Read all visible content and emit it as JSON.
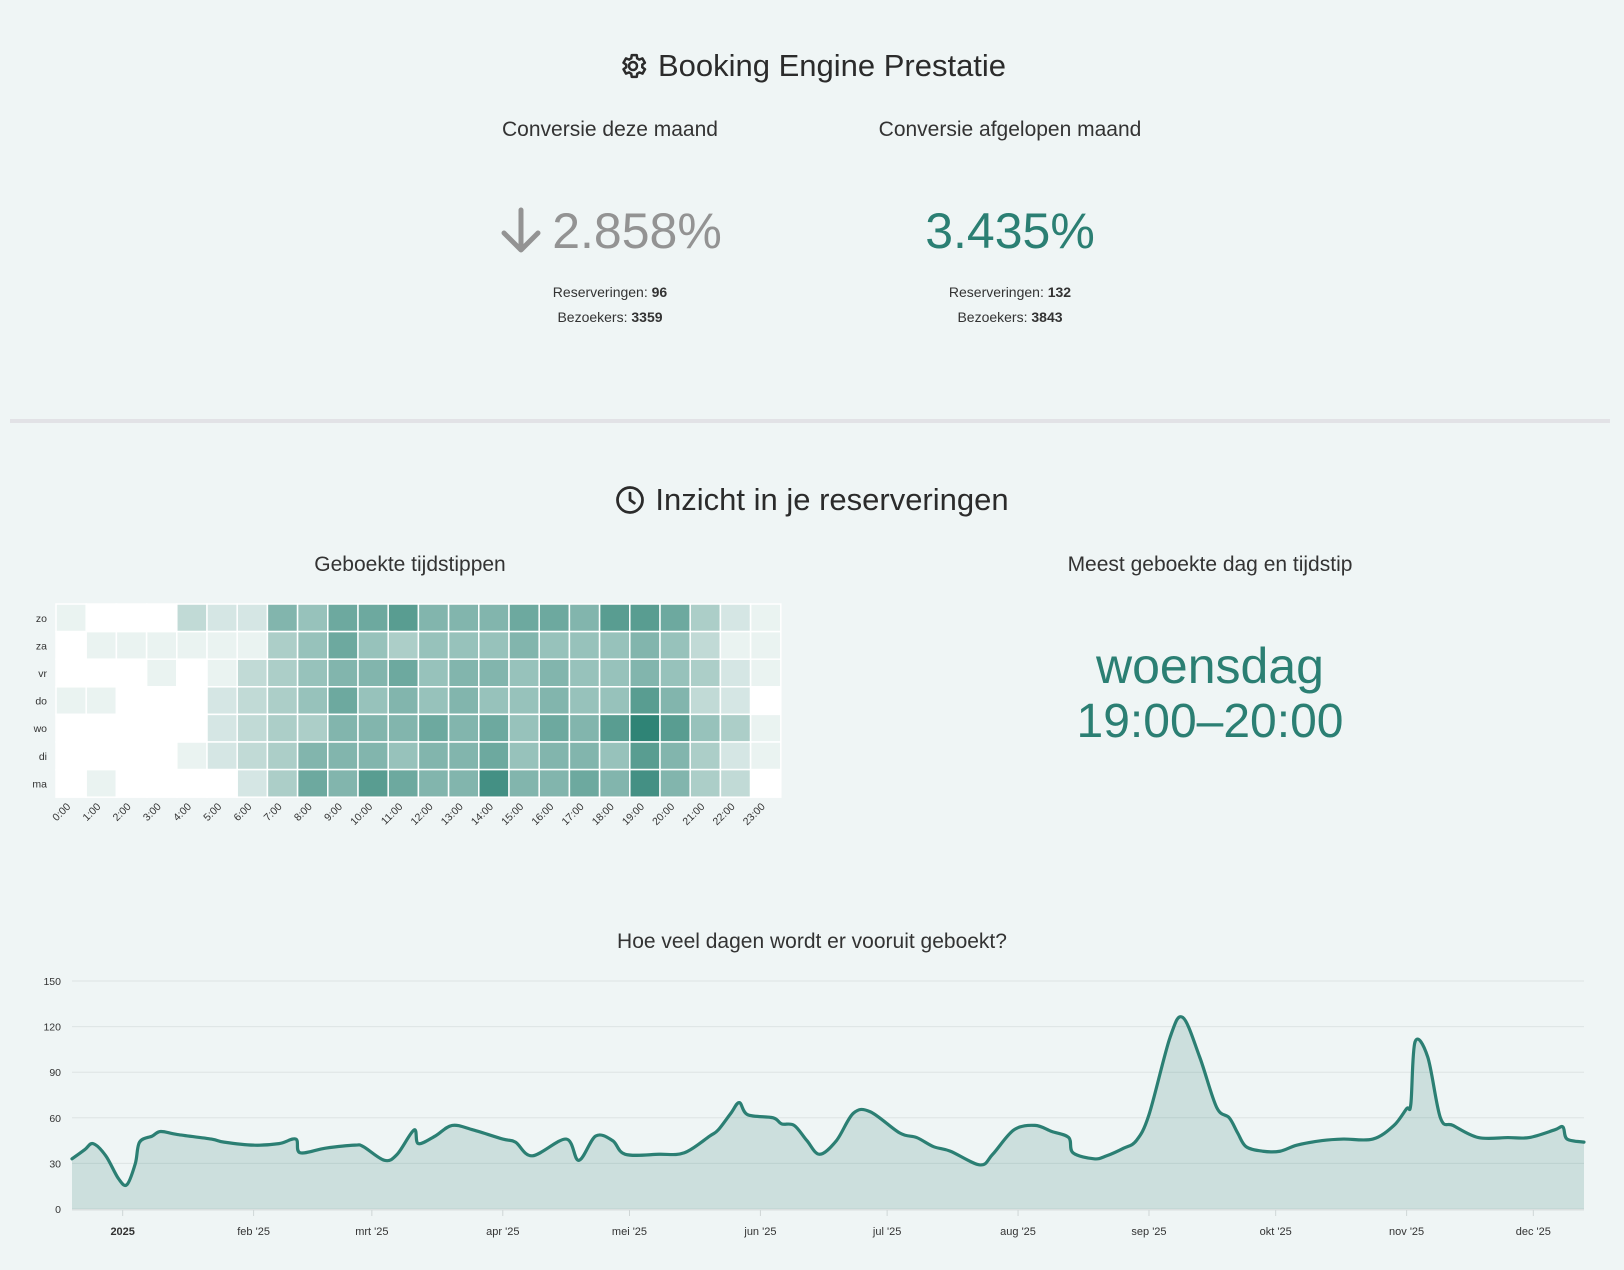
{
  "performance": {
    "title": "Booking Engine Prestatie",
    "current": {
      "label": "Conversie deze maand",
      "rate": "2.858%",
      "reservations_label": "Reserveringen:",
      "reservations": "96",
      "visitors_label": "Bezoekers:",
      "visitors": "3359"
    },
    "previous": {
      "label": "Conversie afgelopen maand",
      "rate": "3.435%",
      "reservations_label": "Reserveringen:",
      "reservations": "132",
      "visitors_label": "Bezoekers:",
      "visitors": "3843"
    }
  },
  "insights": {
    "title": "Inzicht in je reserveringen",
    "most_booked": {
      "label": "Meest geboekte dag en tijdstip",
      "day": "woensdag",
      "time": "19:00–20:00"
    }
  },
  "colors": {
    "accent": "#2b7f73",
    "muted": "#939393",
    "background": "#eff5f5"
  },
  "chart_data": [
    {
      "type": "heatmap",
      "title": "Geboekte tijdstippen",
      "rows": [
        "zo",
        "za",
        "vr",
        "do",
        "wo",
        "di",
        "ma"
      ],
      "columns": [
        "0:00",
        "1:00",
        "2:00",
        "3:00",
        "4:00",
        "5:00",
        "6:00",
        "7:00",
        "8:00",
        "9:00",
        "10:00",
        "11:00",
        "12:00",
        "13:00",
        "14:00",
        "15:00",
        "16:00",
        "17:00",
        "18:00",
        "19:00",
        "20:00",
        "21:00",
        "22:00",
        "23:00"
      ],
      "max": 10,
      "values": [
        [
          1,
          0,
          0,
          0,
          3,
          2,
          2,
          6,
          5,
          7,
          7,
          8,
          6,
          6,
          6,
          7,
          7,
          6,
          8,
          8,
          7,
          4,
          2,
          1
        ],
        [
          0,
          1,
          1,
          1,
          1,
          1,
          1,
          4,
          5,
          7,
          5,
          4,
          5,
          5,
          5,
          6,
          5,
          5,
          5,
          6,
          5,
          3,
          1,
          1
        ],
        [
          0,
          0,
          0,
          1,
          0,
          1,
          3,
          4,
          5,
          6,
          6,
          7,
          5,
          6,
          6,
          5,
          6,
          5,
          5,
          6,
          5,
          4,
          2,
          1
        ],
        [
          1,
          1,
          0,
          0,
          0,
          2,
          3,
          4,
          5,
          7,
          5,
          6,
          5,
          6,
          5,
          5,
          6,
          5,
          5,
          8,
          6,
          3,
          2,
          0
        ],
        [
          0,
          0,
          0,
          0,
          0,
          2,
          3,
          4,
          4,
          6,
          6,
          6,
          7,
          6,
          7,
          5,
          7,
          6,
          8,
          10,
          8,
          5,
          4,
          1
        ],
        [
          0,
          0,
          0,
          0,
          1,
          2,
          3,
          4,
          6,
          6,
          6,
          5,
          6,
          6,
          7,
          5,
          6,
          6,
          5,
          8,
          6,
          4,
          2,
          1
        ],
        [
          0,
          1,
          0,
          0,
          0,
          0,
          2,
          4,
          7,
          6,
          8,
          7,
          6,
          6,
          9,
          6,
          6,
          7,
          6,
          9,
          6,
          4,
          3,
          0
        ]
      ]
    },
    {
      "type": "area",
      "title": "Hoe veel dagen wordt er vooruit geboekt?",
      "xlabel": "",
      "ylabel": "",
      "ylim": [
        0,
        150
      ],
      "yticks": [
        0,
        30,
        60,
        90,
        120,
        150
      ],
      "xlim": [
        "2024-12-20",
        "2025-12-13"
      ],
      "xticks": [
        {
          "date": "2025-01-01",
          "label": "2025"
        },
        {
          "date": "2025-02-01",
          "label": "feb '25"
        },
        {
          "date": "2025-03-01",
          "label": "mrt '25"
        },
        {
          "date": "2025-04-01",
          "label": "apr '25"
        },
        {
          "date": "2025-05-01",
          "label": "mei '25"
        },
        {
          "date": "2025-06-01",
          "label": "jun '25"
        },
        {
          "date": "2025-07-01",
          "label": "jul '25"
        },
        {
          "date": "2025-08-01",
          "label": "aug '25"
        },
        {
          "date": "2025-09-01",
          "label": "sep '25"
        },
        {
          "date": "2025-10-01",
          "label": "okt '25"
        },
        {
          "date": "2025-11-01",
          "label": "nov '25"
        },
        {
          "date": "2025-12-01",
          "label": "dec '25"
        }
      ],
      "points": [
        [
          "2024-12-20",
          33
        ],
        [
          "2024-12-23",
          39
        ],
        [
          "2024-12-25",
          43
        ],
        [
          "2024-12-28",
          35
        ],
        [
          "2024-12-31",
          20
        ],
        [
          "2025-01-02",
          16
        ],
        [
          "2025-01-04",
          30
        ],
        [
          "2025-01-05",
          44
        ],
        [
          "2025-01-08",
          48
        ],
        [
          "2025-01-10",
          51
        ],
        [
          "2025-01-14",
          49
        ],
        [
          "2025-01-22",
          46
        ],
        [
          "2025-01-25",
          44
        ],
        [
          "2025-02-01",
          42
        ],
        [
          "2025-02-07",
          43
        ],
        [
          "2025-02-11",
          46
        ],
        [
          "2025-02-12",
          37
        ],
        [
          "2025-02-18",
          40
        ],
        [
          "2025-02-25",
          42
        ],
        [
          "2025-02-27",
          41
        ],
        [
          "2025-03-04",
          32
        ],
        [
          "2025-03-07",
          36
        ],
        [
          "2025-03-11",
          52
        ],
        [
          "2025-03-12",
          43
        ],
        [
          "2025-03-16",
          48
        ],
        [
          "2025-03-20",
          55
        ],
        [
          "2025-03-25",
          52
        ],
        [
          "2025-04-01",
          46
        ],
        [
          "2025-04-04",
          44
        ],
        [
          "2025-04-08",
          35
        ],
        [
          "2025-04-16",
          46
        ],
        [
          "2025-04-19",
          32
        ],
        [
          "2025-04-23",
          48
        ],
        [
          "2025-04-27",
          45
        ],
        [
          "2025-04-30",
          36
        ],
        [
          "2025-05-08",
          36
        ],
        [
          "2025-05-14",
          37
        ],
        [
          "2025-05-20",
          48
        ],
        [
          "2025-05-22",
          52
        ],
        [
          "2025-05-25",
          63
        ],
        [
          "2025-05-27",
          70
        ],
        [
          "2025-05-29",
          62
        ],
        [
          "2025-06-04",
          60
        ],
        [
          "2025-06-06",
          56
        ],
        [
          "2025-06-09",
          55
        ],
        [
          "2025-06-12",
          45
        ],
        [
          "2025-06-15",
          36
        ],
        [
          "2025-06-19",
          45
        ],
        [
          "2025-06-23",
          63
        ],
        [
          "2025-06-27",
          64
        ],
        [
          "2025-07-04",
          50
        ],
        [
          "2025-07-08",
          47
        ],
        [
          "2025-07-12",
          41
        ],
        [
          "2025-07-16",
          38
        ],
        [
          "2025-07-23",
          29
        ],
        [
          "2025-07-26",
          36
        ],
        [
          "2025-07-31",
          52
        ],
        [
          "2025-08-05",
          55
        ],
        [
          "2025-08-09",
          51
        ],
        [
          "2025-08-13",
          47
        ],
        [
          "2025-08-14",
          37
        ],
        [
          "2025-08-19",
          33
        ],
        [
          "2025-08-22",
          35
        ],
        [
          "2025-08-26",
          40
        ],
        [
          "2025-08-29",
          45
        ],
        [
          "2025-09-01",
          62
        ],
        [
          "2025-09-06",
          113
        ],
        [
          "2025-09-09",
          126
        ],
        [
          "2025-09-13",
          100
        ],
        [
          "2025-09-17",
          67
        ],
        [
          "2025-09-20",
          60
        ],
        [
          "2025-09-22",
          50
        ],
        [
          "2025-09-24",
          41
        ],
        [
          "2025-09-28",
          38
        ],
        [
          "2025-10-02",
          38
        ],
        [
          "2025-10-06",
          42
        ],
        [
          "2025-10-12",
          45
        ],
        [
          "2025-10-17",
          46
        ],
        [
          "2025-10-24",
          46
        ],
        [
          "2025-10-29",
          55
        ],
        [
          "2025-11-01",
          66
        ],
        [
          "2025-11-02",
          69
        ],
        [
          "2025-11-03",
          110
        ],
        [
          "2025-11-06",
          100
        ],
        [
          "2025-11-09",
          60
        ],
        [
          "2025-11-12",
          55
        ],
        [
          "2025-11-18",
          47
        ],
        [
          "2025-11-25",
          47
        ],
        [
          "2025-11-30",
          47
        ],
        [
          "2025-12-06",
          52
        ],
        [
          "2025-12-08",
          54
        ],
        [
          "2025-12-09",
          46
        ],
        [
          "2025-12-13",
          44
        ]
      ]
    }
  ]
}
